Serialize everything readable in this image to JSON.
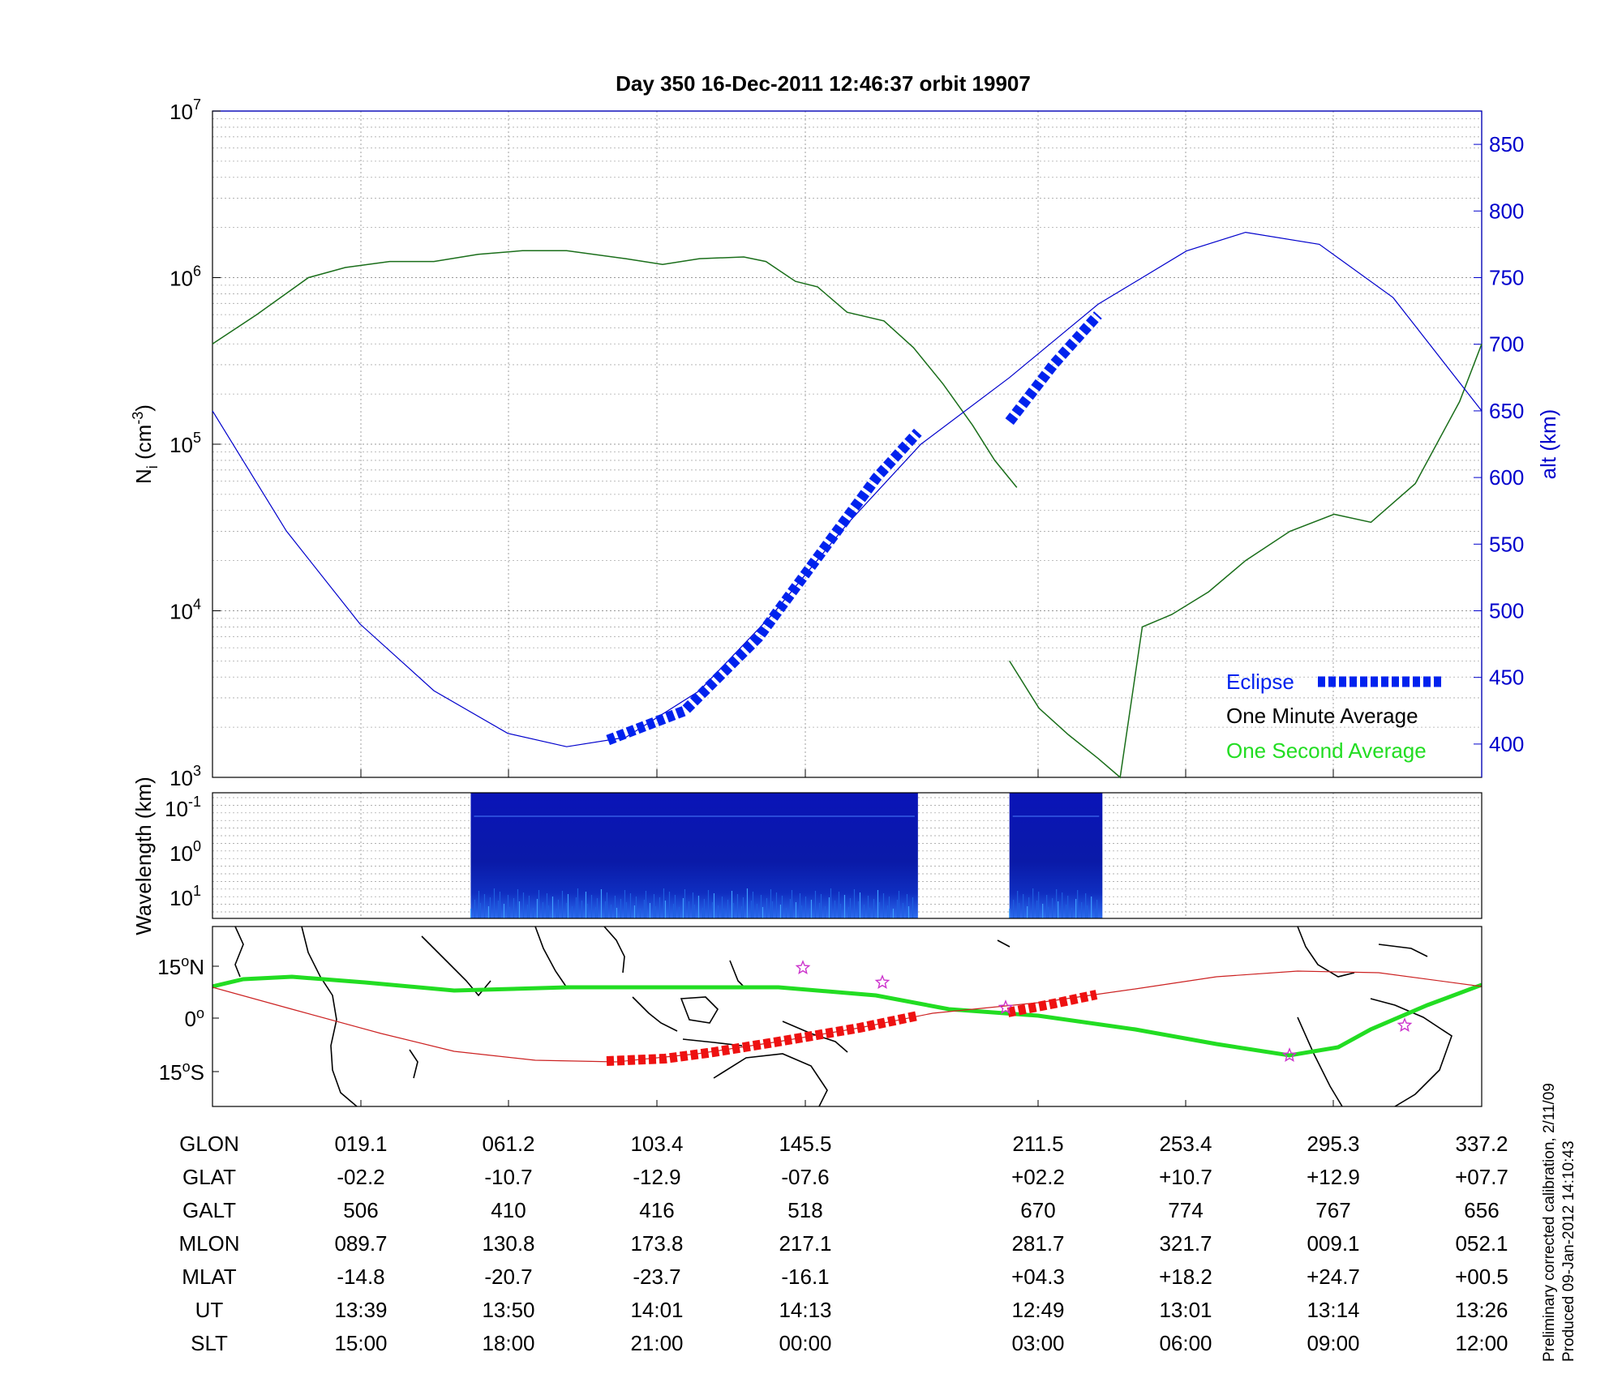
{
  "title": "Day 350  16-Dec-2011 12:46:37   orbit 19907",
  "footer": {
    "line1": "Preliminary corrected calibration, 2/11/09",
    "line2": "Produced 09-Jan-2012 14:10:43"
  },
  "colors": {
    "density": "#1a6e1a",
    "altitude": "#0000cc",
    "eclipse": "#0022ee",
    "track_fast": "#22dd22",
    "track_slow": "#cc2222",
    "eclipse_track": "#ee1111",
    "star": "#cc33cc"
  },
  "chart_data": [
    {
      "type": "line",
      "ylabel_left": "N",
      "ylabel_left_sub": "i",
      "ylabel_left_unit": "(cm",
      "ylabel_left_exp": "-3",
      "ylabel_left_close": ")",
      "ylabel_right": "alt (km)",
      "yscale_left": "log",
      "ylim_left": [
        1000,
        10000000
      ],
      "yticks_left": [
        {
          "base": "10",
          "exp": "3",
          "v": 1000
        },
        {
          "base": "10",
          "exp": "4",
          "v": 10000
        },
        {
          "base": "10",
          "exp": "5",
          "v": 100000
        },
        {
          "base": "10",
          "exp": "6",
          "v": 1000000
        },
        {
          "base": "10",
          "exp": "7",
          "v": 10000000
        }
      ],
      "ylim_right": [
        375,
        875
      ],
      "yticks_right": [
        "400",
        "450",
        "500",
        "550",
        "600",
        "650",
        "700",
        "750",
        "800",
        "850"
      ],
      "xlim": [
        0,
        8.6
      ],
      "grid": true,
      "legend": [
        "Eclipse",
        "One Minute Average",
        "One Second Average"
      ],
      "legend_position": "bottom-right",
      "series": [
        {
          "name": "One Minute Average",
          "axis": "left",
          "segments": [
            [
              [
                0,
                400000
              ],
              [
                0.3,
                600000
              ],
              [
                0.65,
                1000000
              ],
              [
                0.9,
                1150000
              ],
              [
                1.2,
                1250000
              ],
              [
                1.5,
                1250000
              ],
              [
                1.8,
                1380000
              ],
              [
                2.1,
                1450000
              ],
              [
                2.4,
                1450000
              ],
              [
                2.8,
                1300000
              ],
              [
                3.05,
                1200000
              ],
              [
                3.3,
                1300000
              ],
              [
                3.6,
                1330000
              ],
              [
                3.75,
                1250000
              ],
              [
                3.95,
                950000
              ],
              [
                4.1,
                880000
              ],
              [
                4.3,
                620000
              ],
              [
                4.55,
                550000
              ],
              [
                4.75,
                380000
              ],
              [
                4.95,
                230000
              ],
              [
                5.15,
                130000
              ],
              [
                5.3,
                80000
              ],
              [
                5.45,
                55000
              ]
            ],
            [
              [
                5.4,
                5000
              ],
              [
                5.6,
                2600
              ],
              [
                5.8,
                1800
              ],
              [
                6.0,
                1300
              ],
              [
                6.15,
                1000
              ],
              [
                6.3,
                8000
              ],
              [
                6.5,
                9500
              ],
              [
                6.75,
                13000
              ],
              [
                7.0,
                20000
              ],
              [
                7.3,
                30000
              ],
              [
                7.6,
                38000
              ],
              [
                7.85,
                34000
              ],
              [
                8.15,
                58000
              ],
              [
                8.45,
                180000
              ],
              [
                8.6,
                400000
              ]
            ]
          ]
        },
        {
          "name": "alt",
          "axis": "right",
          "segments": [
            [
              [
                0,
                650
              ],
              [
                0.5,
                560
              ],
              [
                1.0,
                490
              ],
              [
                1.5,
                440
              ],
              [
                2.0,
                408
              ],
              [
                2.4,
                398
              ],
              [
                2.8,
                405
              ],
              [
                3.3,
                440
              ],
              [
                3.8,
                498
              ],
              [
                4.3,
                565
              ],
              [
                4.8,
                625
              ],
              [
                5.4,
                675
              ],
              [
                6.0,
                730
              ],
              [
                6.6,
                770
              ],
              [
                7.0,
                784
              ],
              [
                7.5,
                775
              ],
              [
                8.0,
                735
              ],
              [
                8.6,
                650
              ]
            ]
          ]
        },
        {
          "name": "Eclipse",
          "axis": "right",
          "segments": [
            [
              [
                2.68,
                403
              ],
              [
                3.2,
                425
              ],
              [
                3.7,
                480
              ],
              [
                4.1,
                540
              ],
              [
                4.5,
                600
              ],
              [
                4.78,
                634
              ]
            ],
            [
              [
                5.4,
                642
              ],
              [
                5.7,
                685
              ],
              [
                6.0,
                722
              ]
            ]
          ]
        }
      ]
    },
    {
      "type": "heatmap",
      "ylabel": "Wavelength (km)",
      "yticks": [
        {
          "base": "10",
          "exp": "-1"
        },
        {
          "base": "10",
          "exp": "0"
        },
        {
          "base": "10",
          "exp": "1"
        }
      ],
      "data_blocks": [
        [
          1.75,
          4.78
        ],
        [
          5.4,
          6.03
        ]
      ]
    },
    {
      "type": "line",
      "subtype": "map",
      "yticks": [
        {
          "val": "15",
          "unit": "N"
        },
        {
          "val": "0",
          "unit": ""
        },
        {
          "val": "15",
          "unit": "S"
        }
      ],
      "ylim": [
        -25,
        25
      ]
    }
  ],
  "table": {
    "row_labels": [
      "GLON",
      "GLAT",
      "GALT",
      "MLON",
      "MLAT",
      "UT",
      "SLT"
    ],
    "columns": [
      [
        "019.1",
        "-02.2",
        "506",
        "089.7",
        "-14.8",
        "13:39",
        "15:00"
      ],
      [
        "061.2",
        "-10.7",
        "410",
        "130.8",
        "-20.7",
        "13:50",
        "18:00"
      ],
      [
        "103.4",
        "-12.9",
        "416",
        "173.8",
        "-23.7",
        "14:01",
        "21:00"
      ],
      [
        "145.5",
        "-07.6",
        "518",
        "217.1",
        "-16.1",
        "14:13",
        "00:00"
      ],
      [
        "211.5",
        "+02.2",
        "670",
        "281.7",
        "+04.3",
        "12:49",
        "03:00"
      ],
      [
        "253.4",
        "+10.7",
        "774",
        "321.7",
        "+18.2",
        "13:01",
        "06:00"
      ],
      [
        "295.3",
        "+12.9",
        "767",
        "009.1",
        "+24.7",
        "13:14",
        "09:00"
      ],
      [
        "337.2",
        "+07.7",
        "656",
        "052.1",
        "+00.5",
        "13:26",
        "12:00"
      ]
    ]
  }
}
